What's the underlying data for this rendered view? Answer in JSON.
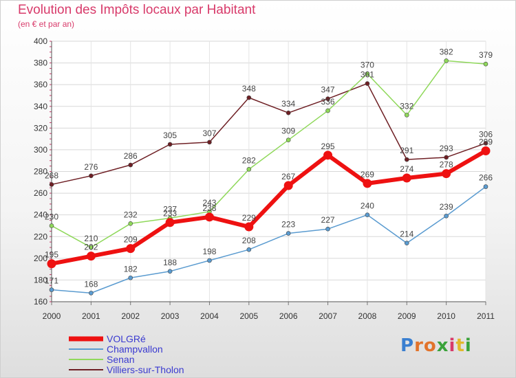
{
  "title": "Evolution des Impôts locaux par Habitant",
  "subtitle": "(en € et par an)",
  "logo": {
    "letters": [
      "P",
      "r",
      "o",
      "x",
      "i",
      "t",
      "i"
    ],
    "colors": [
      "#3a7fd0",
      "#e2732b",
      "#e2732b",
      "#3aa23a",
      "#d83a6a",
      "#e2b82b",
      "#3aa23a"
    ]
  },
  "chart_data": {
    "type": "line",
    "x": [
      "2000",
      "2001",
      "2002",
      "2003",
      "2004",
      "2005",
      "2006",
      "2007",
      "2008",
      "2009",
      "2010",
      "2011"
    ],
    "ylim": [
      160,
      400
    ],
    "yticks": [
      160,
      180,
      200,
      220,
      240,
      260,
      280,
      300,
      320,
      340,
      360,
      380,
      400
    ],
    "grid": true,
    "legend_position": "bottom-left",
    "series": [
      {
        "name": "Villiers-sur-Tholon",
        "color": "#6e1f24",
        "values": [
          268,
          276,
          286,
          305,
          307,
          348,
          334,
          347,
          361,
          291,
          293,
          306
        ]
      },
      {
        "name": "Senan",
        "color": "#8fd85a",
        "values": [
          230,
          210,
          232,
          237,
          243,
          282,
          309,
          336,
          370,
          332,
          382,
          379
        ]
      },
      {
        "name": "Champvallon",
        "color": "#5a9bd0",
        "values": [
          171,
          168,
          182,
          188,
          198,
          208,
          223,
          227,
          240,
          214,
          239,
          266
        ]
      },
      {
        "name": "VOLGRé",
        "color": "#ee1111",
        "values": [
          195,
          202,
          209,
          233,
          238,
          229,
          267,
          295,
          269,
          274,
          278,
          299
        ]
      }
    ]
  }
}
